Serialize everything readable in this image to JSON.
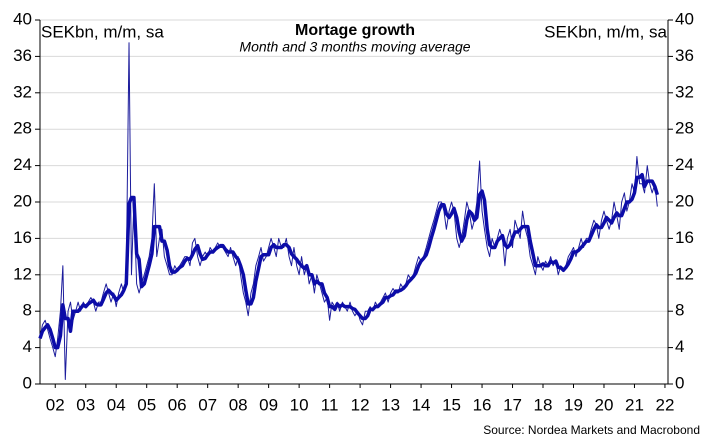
{
  "chart_data": {
    "type": "line",
    "title": "Mortage growth",
    "subtitle": "Month and 3 months moving average",
    "y_label": "SEKbn, m/m, sa",
    "y2_label": "SEKbn, m/m, sa",
    "source": "Source: Nordea Markets and Macrobond",
    "grid": true,
    "xlim": [
      2002,
      2022.6
    ],
    "xticks": [
      {
        "value": 2002.5,
        "label": "02"
      },
      {
        "value": 2003.5,
        "label": "03"
      },
      {
        "value": 2004.5,
        "label": "04"
      },
      {
        "value": 2005.5,
        "label": "05"
      },
      {
        "value": 2006.5,
        "label": "06"
      },
      {
        "value": 2007.5,
        "label": "07"
      },
      {
        "value": 2008.5,
        "label": "08"
      },
      {
        "value": 2009.5,
        "label": "09"
      },
      {
        "value": 2010.5,
        "label": "10"
      },
      {
        "value": 2011.5,
        "label": "11"
      },
      {
        "value": 2012.5,
        "label": "12"
      },
      {
        "value": 2013.5,
        "label": "13"
      },
      {
        "value": 2014.5,
        "label": "14"
      },
      {
        "value": 2015.5,
        "label": "15"
      },
      {
        "value": 2016.5,
        "label": "16"
      },
      {
        "value": 2017.5,
        "label": "17"
      },
      {
        "value": 2018.5,
        "label": "18"
      },
      {
        "value": 2019.5,
        "label": "19"
      },
      {
        "value": 2020.5,
        "label": "20"
      },
      {
        "value": 2021.5,
        "label": "21"
      },
      {
        "value": 2022.5,
        "label": "22"
      }
    ],
    "ylim": [
      0,
      40
    ],
    "yticks": [
      0,
      4,
      8,
      12,
      16,
      20,
      24,
      28,
      32,
      36,
      40
    ],
    "y2lim": [
      0,
      40
    ],
    "y2ticks": [
      0,
      4,
      8,
      12,
      16,
      20,
      24,
      28,
      32,
      36,
      40
    ],
    "x": [
      2002,
      2002.08,
      2002.17,
      2002.25,
      2002.33,
      2002.42,
      2002.5,
      2002.58,
      2002.67,
      2002.75,
      2002.83,
      2002.92,
      2003,
      2003.08,
      2003.17,
      2003.25,
      2003.33,
      2003.42,
      2003.5,
      2003.58,
      2003.67,
      2003.75,
      2003.83,
      2003.92,
      2004,
      2004.08,
      2004.17,
      2004.25,
      2004.33,
      2004.42,
      2004.5,
      2004.58,
      2004.67,
      2004.75,
      2004.83,
      2004.92,
      2005,
      2005.08,
      2005.17,
      2005.25,
      2005.33,
      2005.42,
      2005.5,
      2005.58,
      2005.67,
      2005.75,
      2005.83,
      2005.92,
      2006,
      2006.08,
      2006.17,
      2006.25,
      2006.33,
      2006.42,
      2006.5,
      2006.58,
      2006.67,
      2006.75,
      2006.83,
      2006.92,
      2007,
      2007.08,
      2007.17,
      2007.25,
      2007.33,
      2007.42,
      2007.5,
      2007.58,
      2007.67,
      2007.75,
      2007.83,
      2007.92,
      2008,
      2008.08,
      2008.17,
      2008.25,
      2008.33,
      2008.42,
      2008.5,
      2008.58,
      2008.67,
      2008.75,
      2008.83,
      2008.92,
      2009,
      2009.08,
      2009.17,
      2009.25,
      2009.33,
      2009.42,
      2009.5,
      2009.58,
      2009.67,
      2009.75,
      2009.83,
      2009.92,
      2010,
      2010.08,
      2010.17,
      2010.25,
      2010.33,
      2010.42,
      2010.5,
      2010.58,
      2010.67,
      2010.75,
      2010.83,
      2010.92,
      2011,
      2011.08,
      2011.17,
      2011.25,
      2011.33,
      2011.42,
      2011.5,
      2011.58,
      2011.67,
      2011.75,
      2011.83,
      2011.92,
      2012,
      2012.08,
      2012.17,
      2012.25,
      2012.33,
      2012.42,
      2012.5,
      2012.58,
      2012.67,
      2012.75,
      2012.83,
      2012.92,
      2013,
      2013.08,
      2013.17,
      2013.25,
      2013.33,
      2013.42,
      2013.5,
      2013.58,
      2013.67,
      2013.75,
      2013.83,
      2013.92,
      2014,
      2014.08,
      2014.17,
      2014.25,
      2014.33,
      2014.42,
      2014.5,
      2014.58,
      2014.67,
      2014.75,
      2014.83,
      2014.92,
      2015,
      2015.08,
      2015.17,
      2015.25,
      2015.33,
      2015.42,
      2015.5,
      2015.58,
      2015.67,
      2015.75,
      2015.83,
      2015.92,
      2016,
      2016.08,
      2016.17,
      2016.25,
      2016.33,
      2016.42,
      2016.5,
      2016.58,
      2016.67,
      2016.75,
      2016.83,
      2016.92,
      2017,
      2017.08,
      2017.17,
      2017.25,
      2017.33,
      2017.42,
      2017.5,
      2017.58,
      2017.67,
      2017.75,
      2017.83,
      2017.92,
      2018,
      2018.08,
      2018.17,
      2018.25,
      2018.33,
      2018.42,
      2018.5,
      2018.58,
      2018.67,
      2018.75,
      2018.83,
      2018.92,
      2019,
      2019.08,
      2019.17,
      2019.25,
      2019.33,
      2019.42,
      2019.5,
      2019.58,
      2019.67,
      2019.75,
      2019.83,
      2019.92,
      2020,
      2020.08,
      2020.17,
      2020.25,
      2020.33,
      2020.42,
      2020.5,
      2020.58,
      2020.67,
      2020.75,
      2020.83,
      2020.92,
      2021,
      2021.08,
      2021.17,
      2021.25,
      2021.33,
      2021.42,
      2021.5,
      2021.58,
      2021.67,
      2021.75,
      2021.83,
      2021.92,
      2022,
      2022.08,
      2022.17,
      2022.25
    ],
    "series": [
      {
        "color": "#1c1c9c",
        "values": [
          5,
          6.5,
          7,
          6,
          5,
          4,
          3,
          5,
          8,
          13,
          0.5,
          8,
          9,
          7,
          8,
          9,
          8,
          9,
          8.5,
          9,
          9.5,
          9,
          8,
          9,
          9,
          10,
          11,
          10,
          9,
          10,
          8.5,
          10,
          11,
          10,
          12,
          37.5,
          12,
          20,
          11,
          10,
          11,
          12,
          13,
          14,
          16,
          22,
          14,
          16,
          17,
          14,
          13,
          12,
          12,
          13,
          12.5,
          13,
          13.5,
          14,
          14,
          13,
          15.5,
          16,
          14,
          13,
          14,
          14.5,
          14,
          15,
          14.5,
          15,
          15.5,
          15,
          15,
          14.5,
          14,
          15,
          14,
          13,
          14,
          12,
          10,
          9,
          7.5,
          10,
          11,
          13,
          14,
          15,
          13.5,
          14,
          15,
          16,
          15,
          14,
          16,
          15,
          15,
          16,
          14,
          13,
          15,
          13,
          12,
          14,
          12,
          13,
          11,
          12,
          10,
          12,
          11,
          10,
          9,
          9.5,
          7,
          9,
          8.5,
          9,
          8,
          9,
          8.5,
          8,
          9,
          8,
          7.5,
          8,
          7,
          6.5,
          8,
          8,
          8.5,
          8,
          9,
          8.5,
          9,
          9.5,
          10,
          9,
          10,
          10.5,
          10,
          10,
          11,
          10.5,
          11,
          12,
          11.5,
          12,
          13,
          14,
          13.5,
          14,
          15,
          16,
          17,
          18,
          19,
          20,
          20,
          19,
          17,
          19,
          20,
          19,
          16,
          15,
          16,
          18,
          20,
          19,
          17,
          18,
          20,
          24.5,
          19,
          17,
          15,
          14,
          16,
          15,
          16,
          17,
          16,
          13,
          16,
          17,
          15,
          18,
          17,
          16,
          19,
          17,
          16,
          14,
          13,
          12,
          14,
          13,
          12.5,
          13.5,
          13,
          14,
          13,
          13.5,
          12,
          13,
          12.5,
          13,
          14,
          14.5,
          15,
          14,
          15,
          16,
          15,
          16,
          16,
          17,
          18,
          17.5,
          16,
          18,
          19,
          18,
          17,
          18,
          20,
          18.5,
          17,
          20,
          21,
          19,
          20,
          22,
          21,
          25,
          22,
          22,
          21,
          24,
          22,
          21,
          22,
          19.5
        ]
      },
      {
        "color": "#0c0ca8",
        "values": [
          5,
          5.8,
          6.2,
          6.5,
          6,
          5,
          4,
          4,
          5.3,
          8.7,
          7.2,
          7.2,
          5.8,
          8,
          8,
          8,
          8.3,
          8.7,
          8.5,
          8.8,
          9,
          9.2,
          8.8,
          8.7,
          8.7,
          9.3,
          10,
          10.3,
          10,
          9.7,
          9.2,
          9.5,
          9.8,
          10.3,
          11,
          19.8,
          20.5,
          20.5,
          14.3,
          13.7,
          10.7,
          11,
          12,
          13,
          14.3,
          17.3,
          17.3,
          17.3,
          15.7,
          15.7,
          14.7,
          13,
          12.3,
          12.3,
          12.5,
          12.8,
          13,
          13.5,
          13.8,
          13.7,
          14.2,
          14.8,
          15.2,
          14.3,
          13.7,
          13.8,
          14.2,
          14.5,
          14.5,
          14.8,
          15,
          15.2,
          15.2,
          14.8,
          14.5,
          14.5,
          14.5,
          14,
          13.7,
          13,
          12,
          10.3,
          8.8,
          8.8,
          9.5,
          11.3,
          12.7,
          14,
          14.2,
          14.2,
          14.2,
          15,
          15.3,
          15,
          15,
          15,
          15.3,
          15.3,
          15,
          14.3,
          14,
          13.7,
          13.3,
          13,
          12.7,
          13,
          12,
          12,
          11,
          11.3,
          11,
          11,
          10,
          9.5,
          8.5,
          8.5,
          8.2,
          8.8,
          8.5,
          8.7,
          8.5,
          8.5,
          8.5,
          8.3,
          8.2,
          7.8,
          7.5,
          7.2,
          7.2,
          7.5,
          8.2,
          8.2,
          8.5,
          8.5,
          8.8,
          9,
          9.5,
          9.5,
          9.7,
          9.8,
          10.2,
          10.2,
          10.3,
          10.5,
          10.8,
          11.2,
          11.5,
          11.8,
          12.2,
          13,
          13.5,
          13.8,
          14.2,
          15,
          16,
          17,
          18,
          19,
          19.7,
          19.7,
          18.7,
          18.3,
          18.7,
          19.3,
          18.3,
          16.7,
          15.7,
          16.3,
          18,
          19,
          18.7,
          18,
          18.3,
          20.8,
          21.2,
          20.2,
          17,
          15.3,
          15,
          15,
          15.7,
          16,
          16.3,
          15.3,
          15,
          15.3,
          16,
          16.7,
          16.7,
          17,
          17.3,
          17.3,
          17.3,
          15.7,
          14.3,
          13,
          13,
          13,
          13.2,
          13,
          13,
          13.5,
          13.3,
          13.5,
          12.8,
          12.8,
          12.5,
          12.8,
          13.2,
          13.8,
          14.5,
          14.5,
          14.7,
          15,
          15.3,
          15.7,
          15.7,
          16.3,
          17,
          17.5,
          17.2,
          17.2,
          17.7,
          18.3,
          18,
          17.7,
          18.3,
          18.8,
          18.5,
          18.5,
          19.3,
          20,
          20,
          20.3,
          21,
          22.7,
          22.7,
          23,
          21.7,
          22.3,
          22.3,
          22.3,
          21.7,
          20.8
        ]
      }
    ]
  }
}
